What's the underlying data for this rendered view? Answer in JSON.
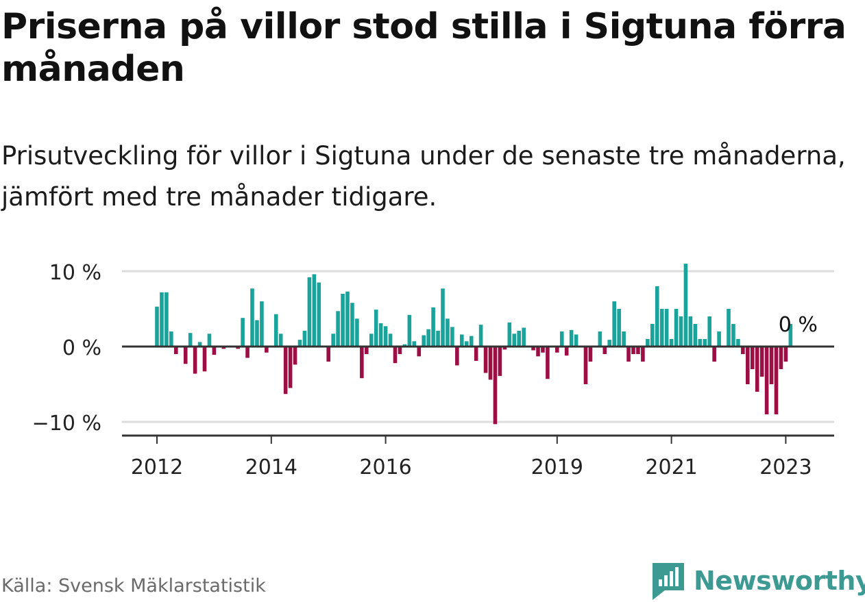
{
  "title": "Priserna på villor stod stilla i Sigtuna förra månaden",
  "subtitle": "Prisutveckling för villor i Sigtuna under de senaste tre månaderna, jämfört med tre månader tidigare.",
  "source": "Källa: Svensk Mäklarstatistik",
  "brand": {
    "name": "Newsworthy",
    "icon": "newsworthy-logo-icon"
  },
  "colors": {
    "positive": "#1aa39a",
    "negative": "#9b0f45",
    "axis": "#333333",
    "grid": "#dddddd",
    "brand": "#3d9a92"
  },
  "chart_data": {
    "type": "bar",
    "title": "Prisutveckling för villor i Sigtuna",
    "unit": "%",
    "ylim": [
      -11.5,
      11.5
    ],
    "y_ticks": [
      {
        "value": 10,
        "label": "10 %"
      },
      {
        "value": 0,
        "label": "0 %"
      },
      {
        "value": -10,
        "label": "−10 %"
      }
    ],
    "x_ticks": [
      {
        "index": 0,
        "label": "2012"
      },
      {
        "index": 24,
        "label": "2014"
      },
      {
        "index": 48,
        "label": "2016"
      },
      {
        "index": 84,
        "label": "2019"
      },
      {
        "index": 108,
        "label": "2021"
      },
      {
        "index": 132,
        "label": "2023"
      }
    ],
    "annotation": {
      "text": "0 %",
      "index": 134
    },
    "values": [
      5.3,
      7.2,
      7.2,
      2.0,
      -1.0,
      0.0,
      -2.3,
      1.8,
      -3.6,
      0.6,
      -3.3,
      1.7,
      -1.1,
      0.0,
      -0.3,
      0.0,
      0.0,
      -0.3,
      3.8,
      -1.5,
      7.7,
      3.5,
      6.0,
      -0.8,
      0.0,
      4.3,
      1.7,
      -6.3,
      -5.5,
      -2.4,
      0.9,
      2.1,
      9.2,
      9.6,
      8.5,
      0.0,
      -2.0,
      1.7,
      4.7,
      7.0,
      7.3,
      5.8,
      3.7,
      -4.2,
      -1.0,
      1.7,
      4.9,
      3.1,
      2.7,
      1.7,
      -2.2,
      -1.0,
      0.3,
      4.2,
      0.7,
      -1.3,
      1.5,
      2.3,
      5.2,
      2.1,
      7.7,
      3.7,
      2.6,
      -2.5,
      1.6,
      0.7,
      1.4,
      -1.9,
      2.9,
      -3.5,
      -4.4,
      -10.3,
      -3.9,
      -0.4,
      3.2,
      1.7,
      2.1,
      2.5,
      0.0,
      -0.5,
      -1.3,
      -0.8,
      -4.3,
      0.0,
      -0.8,
      2.0,
      -1.2,
      2.2,
      1.6,
      0.0,
      -5.0,
      -2.0,
      0.0,
      2.0,
      -1.0,
      0.9,
      6.0,
      5.0,
      2.0,
      -2.0,
      -1.0,
      -1.0,
      -2.0,
      1.0,
      3.0,
      8.0,
      5.0,
      5.0,
      1.0,
      5.0,
      4.0,
      11.0,
      4.0,
      3.0,
      1.0,
      1.0,
      4.0,
      -2.0,
      2.0,
      0.0,
      5.0,
      3.0,
      1.0,
      -1.0,
      -5.0,
      -3.0,
      -6.0,
      -4.0,
      -9.0,
      -5.0,
      -9.0,
      -3.0,
      -2.0,
      3.0,
      0.0
    ]
  }
}
